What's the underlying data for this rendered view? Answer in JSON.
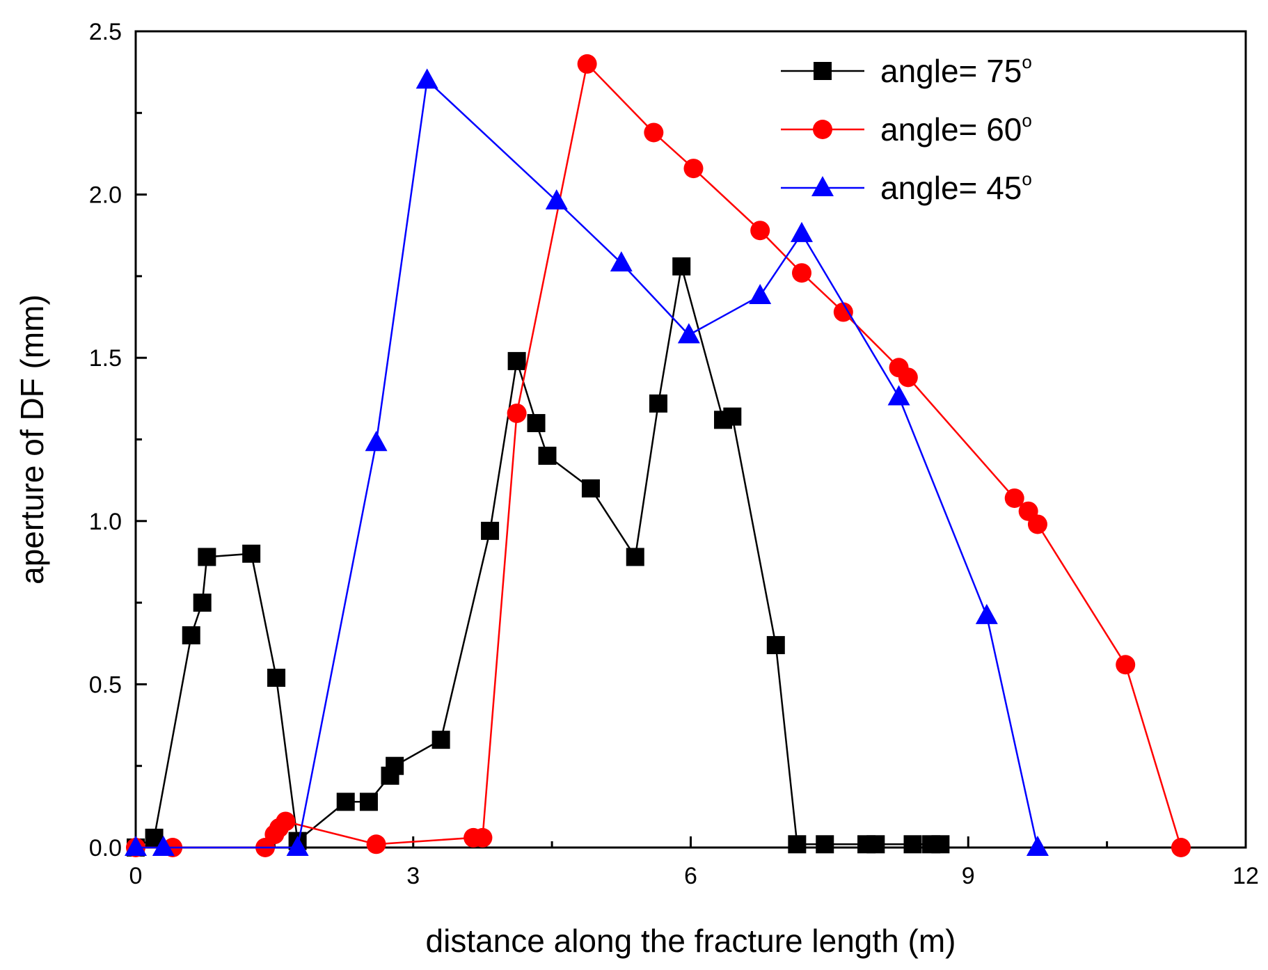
{
  "chart_data": {
    "type": "line",
    "xlabel": "distance along the fracture length (m)",
    "ylabel": "aperture of DF (mm)",
    "xlim": [
      0,
      12
    ],
    "ylim": [
      0,
      2.5
    ],
    "x_ticks": [
      0,
      3,
      6,
      9,
      12
    ],
    "x_tick_labels": [
      "0",
      "3",
      "6",
      "9",
      "12"
    ],
    "y_ticks": [
      0,
      0.5,
      1.0,
      1.5,
      2.0,
      2.5
    ],
    "y_tick_labels": [
      "0.0",
      "0.5",
      "1.0",
      "1.5",
      "2.0",
      "2.5"
    ],
    "grid": false,
    "legend": {
      "position": "top-right",
      "entries": [
        {
          "base": "angle= 75",
          "sup": "o"
        },
        {
          "base": "angle= 60",
          "sup": "o"
        },
        {
          "base": "angle= 45",
          "sup": "o"
        }
      ]
    },
    "series": [
      {
        "legend_index": 0,
        "color": "#000000",
        "marker": "square",
        "points": [
          [
            0.0,
            0.0
          ],
          [
            0.2,
            0.03
          ],
          [
            0.6,
            0.65
          ],
          [
            0.72,
            0.75
          ],
          [
            0.77,
            0.89
          ],
          [
            1.25,
            0.9
          ],
          [
            1.52,
            0.52
          ],
          [
            1.75,
            0.02
          ],
          [
            2.27,
            0.14
          ],
          [
            2.52,
            0.14
          ],
          [
            2.75,
            0.22
          ],
          [
            2.8,
            0.25
          ],
          [
            3.3,
            0.33
          ],
          [
            3.83,
            0.97
          ],
          [
            4.12,
            1.49
          ],
          [
            4.33,
            1.3
          ],
          [
            4.45,
            1.2
          ],
          [
            4.92,
            1.1
          ],
          [
            5.4,
            0.89
          ],
          [
            5.65,
            1.36
          ],
          [
            5.9,
            1.78
          ],
          [
            6.35,
            1.31
          ],
          [
            6.45,
            1.32
          ],
          [
            6.92,
            0.62
          ],
          [
            7.15,
            0.01
          ],
          [
            7.45,
            0.01
          ],
          [
            7.9,
            0.01
          ],
          [
            8.0,
            0.01
          ],
          [
            8.4,
            0.01
          ],
          [
            8.6,
            0.01
          ],
          [
            8.7,
            0.01
          ]
        ]
      },
      {
        "legend_index": 1,
        "color": "#ff0000",
        "marker": "circle",
        "points": [
          [
            0.0,
            0.0
          ],
          [
            0.4,
            0.0
          ],
          [
            1.4,
            0.0
          ],
          [
            1.5,
            0.04
          ],
          [
            1.55,
            0.06
          ],
          [
            1.62,
            0.08
          ],
          [
            2.6,
            0.01
          ],
          [
            3.65,
            0.03
          ],
          [
            3.75,
            0.03
          ],
          [
            4.12,
            1.33
          ],
          [
            4.88,
            2.4
          ],
          [
            5.6,
            2.19
          ],
          [
            6.03,
            2.08
          ],
          [
            6.75,
            1.89
          ],
          [
            7.2,
            1.76
          ],
          [
            7.65,
            1.64
          ],
          [
            8.25,
            1.47
          ],
          [
            8.35,
            1.44
          ],
          [
            9.5,
            1.07
          ],
          [
            9.65,
            1.03
          ],
          [
            9.75,
            0.99
          ],
          [
            10.7,
            0.56
          ],
          [
            11.3,
            0.0
          ]
        ]
      },
      {
        "legend_index": 2,
        "color": "#0000ff",
        "marker": "triangle",
        "points": [
          [
            0.0,
            0.0
          ],
          [
            0.3,
            0.0
          ],
          [
            1.75,
            0.0
          ],
          [
            2.6,
            1.24
          ],
          [
            3.15,
            2.35
          ],
          [
            4.55,
            1.98
          ],
          [
            5.25,
            1.79
          ],
          [
            5.98,
            1.57
          ],
          [
            6.75,
            1.69
          ],
          [
            7.2,
            1.88
          ],
          [
            8.25,
            1.38
          ],
          [
            9.2,
            0.71
          ],
          [
            9.75,
            0.0
          ]
        ]
      }
    ]
  }
}
